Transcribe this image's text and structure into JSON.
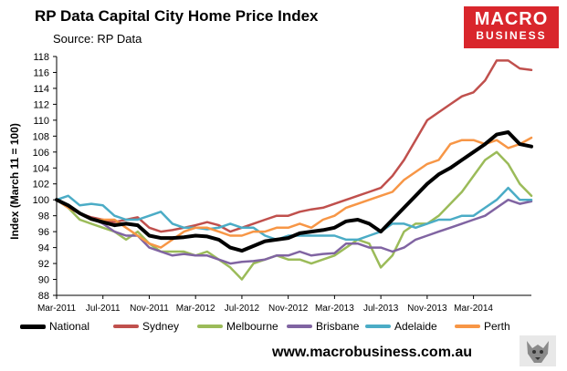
{
  "header": {
    "title": "RP Data Capital City Home Price Index",
    "subtitle": "Source: RP Data"
  },
  "logo": {
    "line1": "MACRO",
    "line2": "BUSINESS"
  },
  "footer": {
    "website": "www.macrobusiness.com.au"
  },
  "colors": {
    "National": "#000000",
    "Sydney": "#c0504d",
    "Melbourne": "#9bbb59",
    "Brisbane": "#8064a2",
    "Adelaide": "#4bacc6",
    "Perth": "#f79646",
    "logo_bg": "#d9262c"
  },
  "chart_data": {
    "type": "line",
    "title": "RP Data Capital City Home Price Index",
    "xlabel": "",
    "ylabel": "Index (March 11 = 100)",
    "ylim": [
      88,
      118
    ],
    "yticks": [
      88,
      90,
      92,
      94,
      96,
      98,
      100,
      102,
      104,
      106,
      108,
      110,
      112,
      114,
      116,
      118
    ],
    "xticks": [
      "Mar-2011",
      "Jul-2011",
      "Nov-2011",
      "Mar-2012",
      "Jul-2012",
      "Nov-2012",
      "Mar-2013",
      "Jul-2013",
      "Nov-2013",
      "Mar-2014"
    ],
    "x": [
      "2011-03",
      "2011-04",
      "2011-05",
      "2011-06",
      "2011-07",
      "2011-08",
      "2011-09",
      "2011-10",
      "2011-11",
      "2011-12",
      "2012-01",
      "2012-02",
      "2012-03",
      "2012-04",
      "2012-05",
      "2012-06",
      "2012-07",
      "2012-08",
      "2012-09",
      "2012-10",
      "2012-11",
      "2012-12",
      "2013-01",
      "2013-02",
      "2013-03",
      "2013-04",
      "2013-05",
      "2013-06",
      "2013-07",
      "2013-08",
      "2013-09",
      "2013-10",
      "2013-11",
      "2013-12",
      "2014-01",
      "2014-02",
      "2014-03",
      "2014-04",
      "2014-05",
      "2014-06",
      "2014-07",
      "2014-08"
    ],
    "grid": false,
    "legend": "bottom",
    "series": [
      {
        "name": "National",
        "values": [
          100.0,
          99.3,
          98.3,
          97.6,
          97.2,
          96.8,
          97.0,
          96.8,
          95.5,
          95.2,
          95.2,
          95.3,
          95.5,
          95.4,
          95.0,
          94.0,
          93.6,
          94.2,
          94.8,
          95.0,
          95.2,
          95.8,
          96.0,
          96.2,
          96.5,
          97.3,
          97.5,
          97.0,
          96.0,
          97.5,
          99.0,
          100.5,
          102.0,
          103.2,
          104.0,
          105.0,
          106.0,
          107.0,
          108.2,
          108.5,
          107.0,
          106.7
        ]
      },
      {
        "name": "Sydney",
        "values": [
          100.0,
          99.0,
          98.3,
          97.8,
          97.5,
          97.2,
          97.5,
          97.8,
          96.5,
          96.0,
          96.2,
          96.5,
          96.8,
          97.2,
          96.8,
          96.0,
          96.5,
          97.0,
          97.5,
          98.0,
          98.0,
          98.5,
          98.8,
          99.0,
          99.5,
          100.0,
          100.5,
          101.0,
          101.5,
          103.0,
          105.0,
          107.5,
          110.0,
          111.0,
          112.0,
          113.0,
          113.5,
          115.0,
          117.5,
          117.5,
          116.5,
          116.3
        ]
      },
      {
        "name": "Melbourne",
        "values": [
          100.0,
          99.0,
          97.5,
          97.0,
          96.5,
          96.0,
          95.0,
          96.0,
          94.5,
          93.5,
          93.5,
          93.5,
          93.0,
          93.5,
          92.5,
          91.5,
          90.0,
          92.0,
          92.5,
          93.0,
          92.5,
          92.5,
          92.0,
          92.5,
          93.0,
          94.0,
          95.0,
          94.5,
          91.5,
          93.0,
          96.0,
          97.0,
          97.0,
          98.0,
          99.5,
          101.0,
          103.0,
          105.0,
          106.0,
          104.5,
          102.0,
          100.5
        ]
      },
      {
        "name": "Brisbane",
        "values": [
          100.0,
          99.3,
          98.3,
          97.7,
          97.0,
          96.0,
          95.5,
          95.5,
          94.0,
          93.5,
          93.0,
          93.2,
          93.0,
          93.0,
          92.5,
          92.0,
          92.2,
          92.3,
          92.5,
          93.0,
          93.0,
          93.5,
          93.0,
          93.2,
          93.3,
          94.5,
          94.5,
          94.0,
          94.0,
          93.5,
          94.0,
          95.0,
          95.5,
          96.0,
          96.5,
          97.0,
          97.5,
          98.0,
          99.0,
          100.0,
          99.5,
          99.8
        ]
      },
      {
        "name": "Adelaide",
        "values": [
          100.0,
          100.5,
          99.3,
          99.5,
          99.3,
          98.0,
          97.5,
          97.5,
          98.0,
          98.5,
          97.0,
          96.5,
          96.5,
          96.3,
          96.5,
          97.0,
          96.5,
          96.5,
          95.5,
          95.0,
          95.5,
          95.5,
          95.5,
          95.5,
          95.5,
          95.0,
          95.0,
          95.5,
          96.0,
          97.0,
          97.0,
          96.5,
          97.0,
          97.5,
          97.5,
          98.0,
          98.0,
          99.0,
          100.0,
          101.5,
          100.0,
          100.0
        ]
      },
      {
        "name": "Perth",
        "values": [
          100.0,
          99.0,
          98.3,
          97.5,
          97.5,
          97.5,
          96.5,
          95.5,
          94.5,
          94.0,
          95.0,
          96.0,
          96.5,
          96.5,
          96.0,
          95.5,
          95.5,
          96.0,
          96.0,
          96.5,
          96.5,
          97.0,
          96.5,
          97.5,
          98.0,
          99.0,
          99.5,
          100.0,
          100.5,
          101.0,
          102.5,
          103.5,
          104.5,
          105.0,
          107.0,
          107.5,
          107.5,
          107.0,
          107.5,
          106.5,
          107.0,
          107.8
        ]
      }
    ]
  }
}
